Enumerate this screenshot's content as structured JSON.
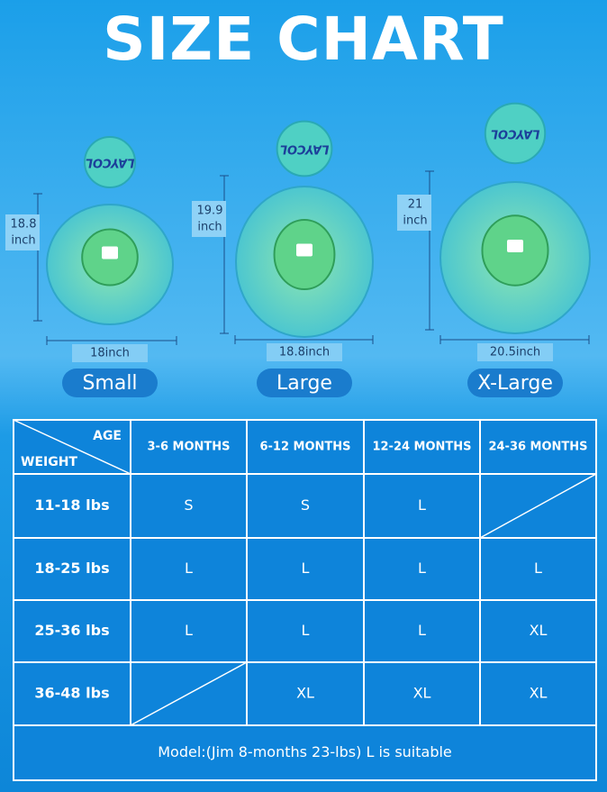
{
  "header": {
    "title": "SIZE CHART"
  },
  "products": [
    {
      "brand": "LAYCOL",
      "height": "18.8",
      "height_unit": "inch",
      "width": "18inch",
      "size": "Small"
    },
    {
      "brand": "LAYCOL",
      "height": "19.9",
      "height_unit": "inch",
      "width": "18.8inch",
      "size": "Large"
    },
    {
      "brand": "LAYCOL",
      "height": "21",
      "height_unit": "inch",
      "width": "20.5inch",
      "size": "X-Large"
    }
  ],
  "table": {
    "corner_top": "AGE",
    "corner_bottom": "WEIGHT",
    "columns": [
      "3-6 MONTHS",
      "6-12 MONTHS",
      "12-24 MONTHS",
      "24-36 MONTHS"
    ],
    "rows": [
      {
        "weight": "11-18 lbs",
        "cells": [
          "S",
          "S",
          "L",
          null
        ]
      },
      {
        "weight": "18-25 lbs",
        "cells": [
          "L",
          "L",
          "L",
          "L"
        ]
      },
      {
        "weight": "25-36 lbs",
        "cells": [
          "L",
          "L",
          "L",
          "XL"
        ]
      },
      {
        "weight": "36-48 lbs",
        "cells": [
          null,
          "XL",
          "XL",
          "XL"
        ]
      }
    ],
    "note": "Model:(Jim 8-months 23-lbs) L is suitable"
  }
}
